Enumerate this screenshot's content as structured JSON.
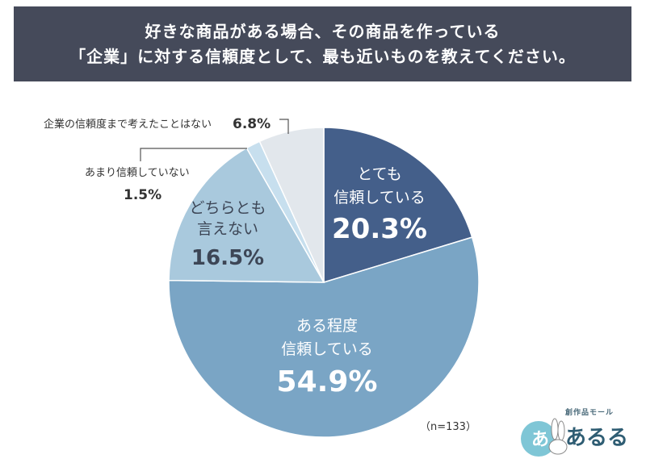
{
  "title": {
    "line1": "好きな商品がある場合、その商品を作っている",
    "line2": "「企業」に対する信頼度として、最も近いものを教えてください。"
  },
  "chart_data": {
    "type": "pie",
    "slices": [
      {
        "label_lines": [
          "とても",
          "信頼している"
        ],
        "value": 20.3,
        "value_text": "20.3%",
        "color": "#445f8a",
        "text_color": "#ffffff"
      },
      {
        "label_lines": [
          "ある程度",
          "信頼している"
        ],
        "value": 54.9,
        "value_text": "54.9%",
        "color": "#7aa5c5",
        "text_color": "#ffffff"
      },
      {
        "label_lines": [
          "どちらとも",
          "言えない"
        ],
        "value": 16.5,
        "value_text": "16.5%",
        "color": "#a9c9dd",
        "text_color": "#3d4656"
      },
      {
        "label_lines": [
          "あまり信頼していない"
        ],
        "value": 1.5,
        "value_text": "1.5%",
        "color": "#c7dfee",
        "text_color": "#3d4656"
      },
      {
        "label_lines": [
          "企業の信頼度まで考えたことはない"
        ],
        "value": 6.8,
        "value_text": "6.8%",
        "color": "#e2e7ec",
        "text_color": "#3d4656"
      }
    ],
    "start_angle_deg": 0,
    "direction": "clockwise"
  },
  "sample_size": "（n=133）",
  "logo": {
    "caption": "創作品モール",
    "name": "あるる",
    "badge_char": "あ"
  }
}
